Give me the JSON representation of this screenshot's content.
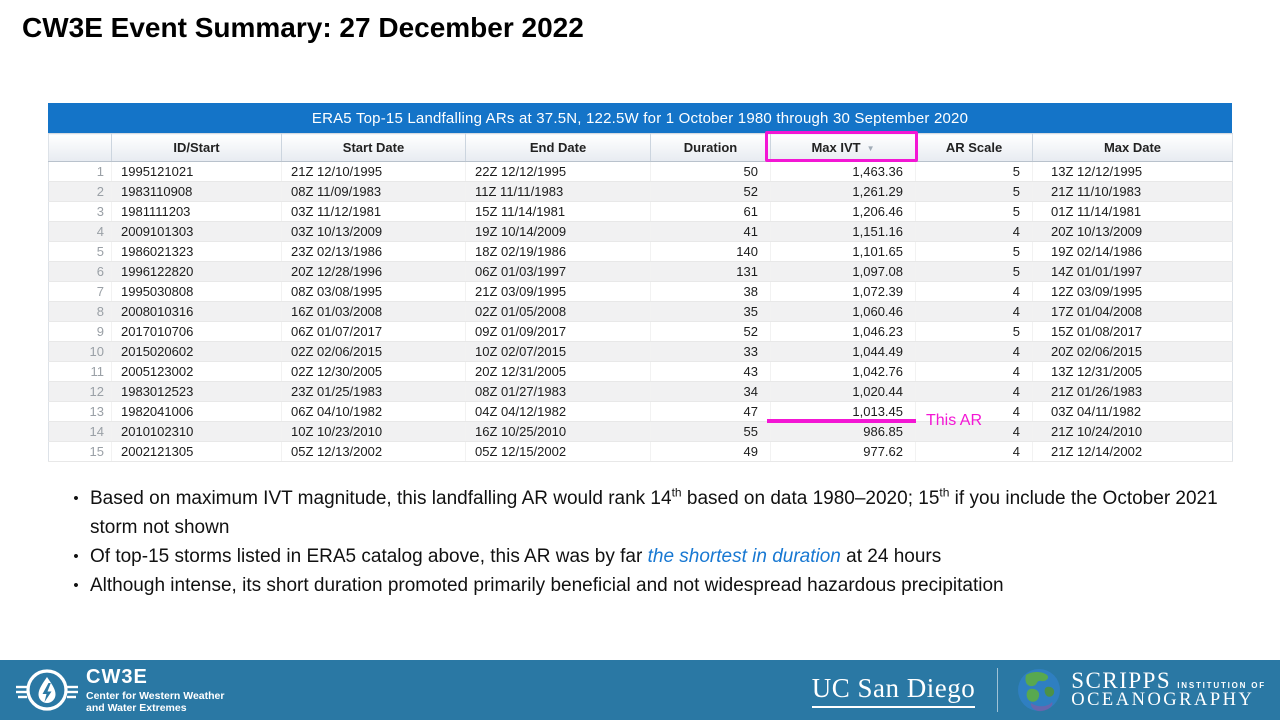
{
  "slide": {
    "title": "CW3E Event Summary: 27 December 2022"
  },
  "colors": {
    "table_header_blue": "#1474C8",
    "accent_magenta": "#F316D4",
    "link_blue": "#1878D2",
    "footer_teal": "#2A78A4"
  },
  "table": {
    "title": "ERA5 Top-15 Landfalling ARs at 37.5N, 122.5W for 1 October 1980 through 30 September 2020",
    "columns": [
      "ID/Start",
      "Start Date",
      "End Date",
      "Duration",
      "Max IVT",
      "AR Scale",
      "Max Date"
    ],
    "sort_icon": "▼",
    "sorted_column": "Max IVT",
    "highlighted_row": 13,
    "annotation": {
      "label": "This AR"
    },
    "rows": [
      {
        "num": "1",
        "id": "1995121021",
        "start": "21Z 12/10/1995",
        "end": "22Z 12/12/1995",
        "duration": "50",
        "max_ivt": "1,463.36",
        "ar_scale": "5",
        "max_date": "13Z 12/12/1995"
      },
      {
        "num": "2",
        "id": "1983110908",
        "start": "08Z 11/09/1983",
        "end": "11Z 11/11/1983",
        "duration": "52",
        "max_ivt": "1,261.29",
        "ar_scale": "5",
        "max_date": "21Z 11/10/1983"
      },
      {
        "num": "3",
        "id": "1981111203",
        "start": "03Z 11/12/1981",
        "end": "15Z 11/14/1981",
        "duration": "61",
        "max_ivt": "1,206.46",
        "ar_scale": "5",
        "max_date": "01Z 11/14/1981"
      },
      {
        "num": "4",
        "id": "2009101303",
        "start": "03Z 10/13/2009",
        "end": "19Z 10/14/2009",
        "duration": "41",
        "max_ivt": "1,151.16",
        "ar_scale": "4",
        "max_date": "20Z 10/13/2009"
      },
      {
        "num": "5",
        "id": "1986021323",
        "start": "23Z 02/13/1986",
        "end": "18Z 02/19/1986",
        "duration": "140",
        "max_ivt": "1,101.65",
        "ar_scale": "5",
        "max_date": "19Z 02/14/1986"
      },
      {
        "num": "6",
        "id": "1996122820",
        "start": "20Z 12/28/1996",
        "end": "06Z 01/03/1997",
        "duration": "131",
        "max_ivt": "1,097.08",
        "ar_scale": "5",
        "max_date": "14Z 01/01/1997"
      },
      {
        "num": "7",
        "id": "1995030808",
        "start": "08Z 03/08/1995",
        "end": "21Z 03/09/1995",
        "duration": "38",
        "max_ivt": "1,072.39",
        "ar_scale": "4",
        "max_date": "12Z 03/09/1995"
      },
      {
        "num": "8",
        "id": "2008010316",
        "start": "16Z 01/03/2008",
        "end": "02Z 01/05/2008",
        "duration": "35",
        "max_ivt": "1,060.46",
        "ar_scale": "4",
        "max_date": "17Z 01/04/2008"
      },
      {
        "num": "9",
        "id": "2017010706",
        "start": "06Z 01/07/2017",
        "end": "09Z 01/09/2017",
        "duration": "52",
        "max_ivt": "1,046.23",
        "ar_scale": "5",
        "max_date": "15Z 01/08/2017"
      },
      {
        "num": "10",
        "id": "2015020602",
        "start": "02Z 02/06/2015",
        "end": "10Z 02/07/2015",
        "duration": "33",
        "max_ivt": "1,044.49",
        "ar_scale": "4",
        "max_date": "20Z 02/06/2015"
      },
      {
        "num": "11",
        "id": "2005123002",
        "start": "02Z 12/30/2005",
        "end": "20Z 12/31/2005",
        "duration": "43",
        "max_ivt": "1,042.76",
        "ar_scale": "4",
        "max_date": "13Z 12/31/2005"
      },
      {
        "num": "12",
        "id": "1983012523",
        "start": "23Z 01/25/1983",
        "end": "08Z 01/27/1983",
        "duration": "34",
        "max_ivt": "1,020.44",
        "ar_scale": "4",
        "max_date": "21Z 01/26/1983"
      },
      {
        "num": "13",
        "id": "1982041006",
        "start": "06Z 04/10/1982",
        "end": "04Z 04/12/1982",
        "duration": "47",
        "max_ivt": "1,013.45",
        "ar_scale": "4",
        "max_date": "03Z 04/11/1982"
      },
      {
        "num": "14",
        "id": "2010102310",
        "start": "10Z 10/23/2010",
        "end": "16Z 10/25/2010",
        "duration": "55",
        "max_ivt": "986.85",
        "ar_scale": "4",
        "max_date": "21Z 10/24/2010"
      },
      {
        "num": "15",
        "id": "2002121305",
        "start": "05Z 12/13/2002",
        "end": "05Z 12/15/2002",
        "duration": "49",
        "max_ivt": "977.62",
        "ar_scale": "4",
        "max_date": "21Z 12/14/2002"
      }
    ]
  },
  "bullets": {
    "marker": "•",
    "items": [
      {
        "segments": [
          {
            "text": "Based on maximum IVT magnitude, this landfalling AR would rank 14"
          },
          {
            "text": "th",
            "style": "sup"
          },
          {
            "text": " based on data 1980–2020; 15"
          },
          {
            "text": "th",
            "style": "sup"
          },
          {
            "text": " if you include the October 2021 storm not shown"
          }
        ]
      },
      {
        "segments": [
          {
            "text": "Of top-15 storms listed in ERA5 catalog above, this AR was by far "
          },
          {
            "text": "the shortest in duration",
            "style": "blue-italic"
          },
          {
            "text": " at 24 hours"
          }
        ]
      },
      {
        "segments": [
          {
            "text": "Although intense, its short duration promoted primarily beneficial and not widespread hazardous precipitation"
          }
        ]
      }
    ]
  },
  "footer": {
    "cw3e": {
      "name": "CW3E",
      "tagline1": "Center for Western Weather",
      "tagline2": "and Water Extremes"
    },
    "ucsd_wordmark": "UC San Diego",
    "scripps": {
      "name": "SCRIPPS",
      "institution_of": "INSTITUTION OF",
      "oceanography": "OCEANOGRAPHY"
    }
  }
}
